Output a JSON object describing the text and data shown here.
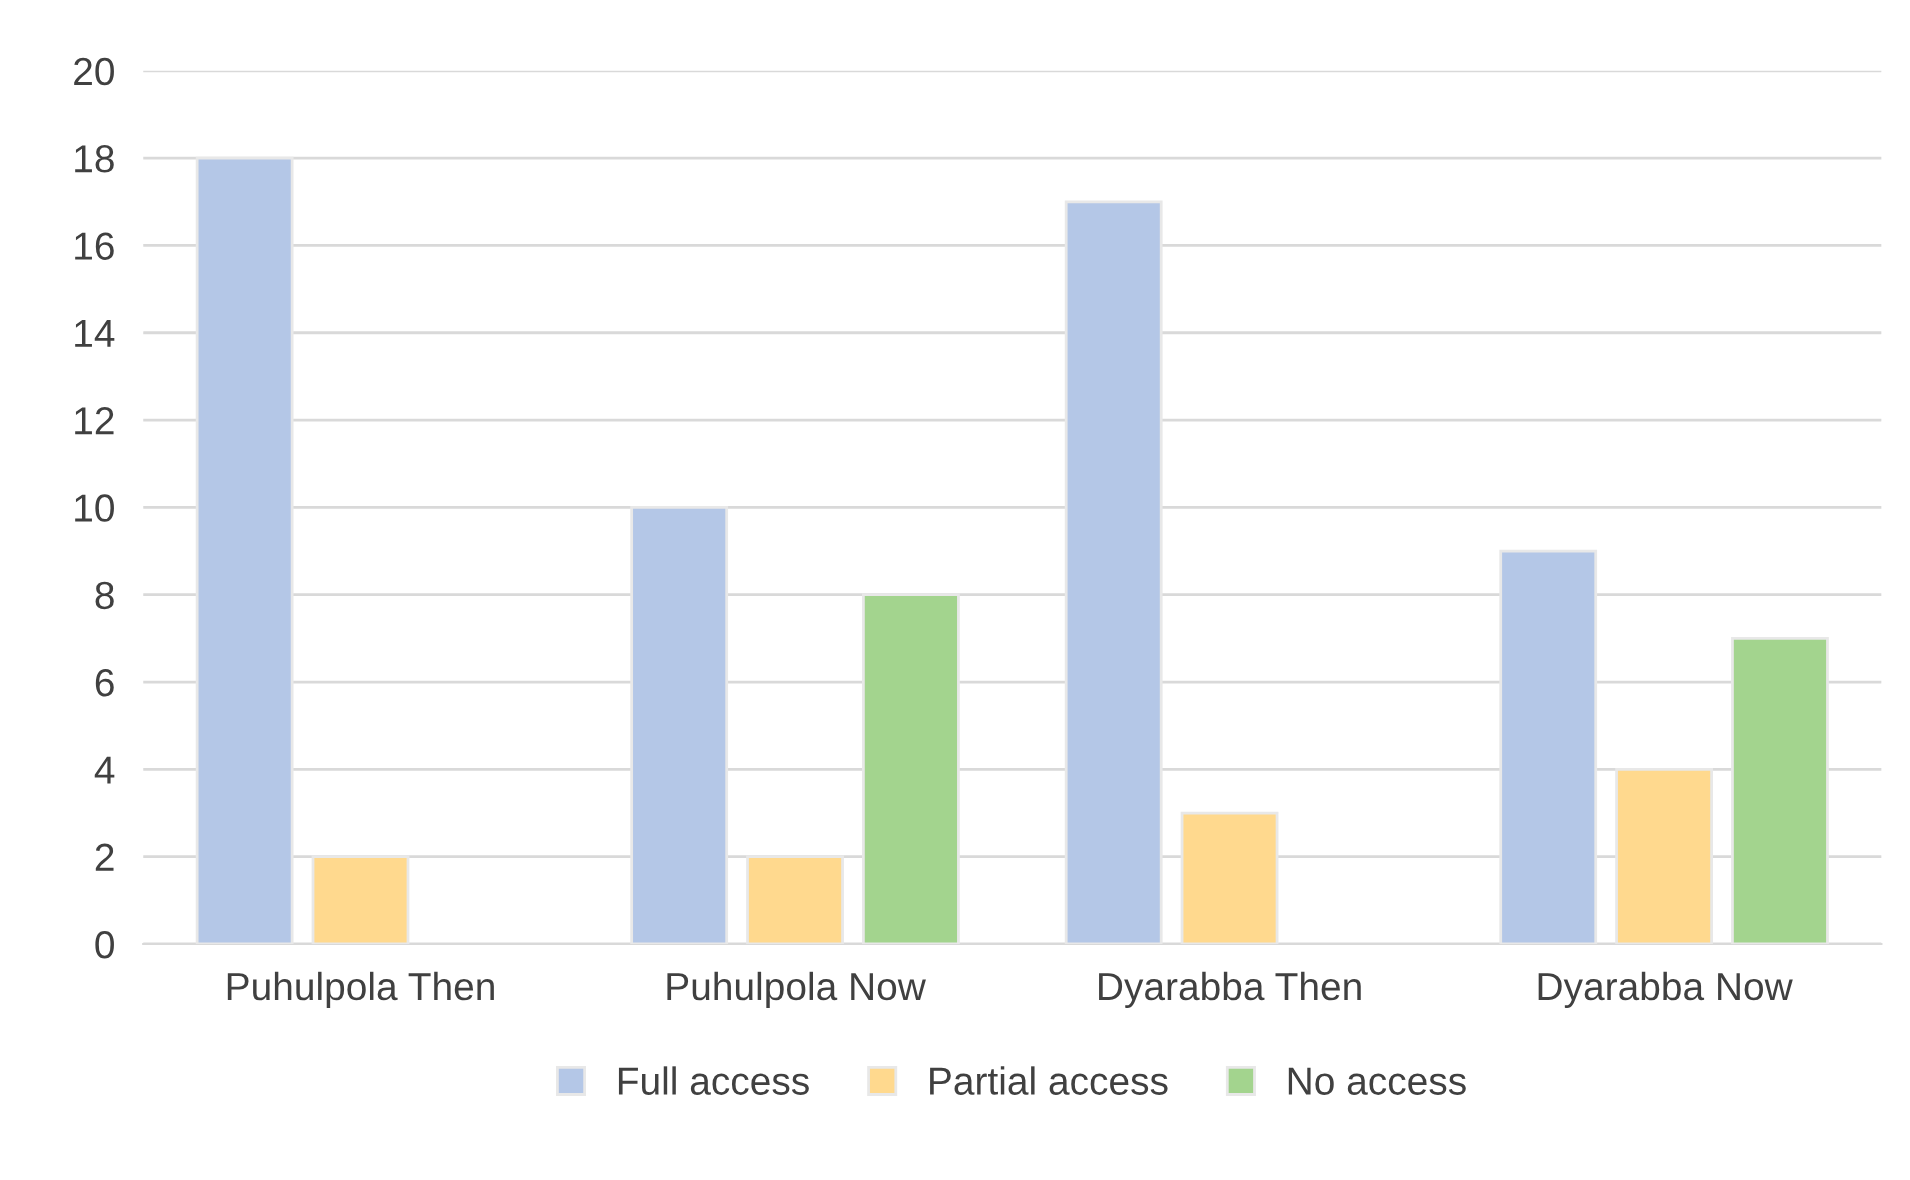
{
  "chart_data": {
    "type": "bar",
    "categories": [
      "Puhulpola Then",
      "Puhulpola Now",
      "Dyarabba Then",
      "Dyarabba Now"
    ],
    "series": [
      {
        "name": "Full access",
        "color": "#b4c7e7",
        "values": [
          18,
          10,
          17,
          9
        ]
      },
      {
        "name": "Partial access",
        "color": "#ffd98e",
        "values": [
          2,
          2,
          3,
          4
        ]
      },
      {
        "name": "No access",
        "color": "#a3d48e",
        "values": [
          null,
          8,
          null,
          7
        ]
      }
    ],
    "ylim": [
      0,
      20
    ],
    "yticks": [
      0,
      2,
      4,
      6,
      8,
      10,
      12,
      14,
      16,
      18,
      20
    ],
    "grid": "y",
    "legend": "bottom"
  }
}
